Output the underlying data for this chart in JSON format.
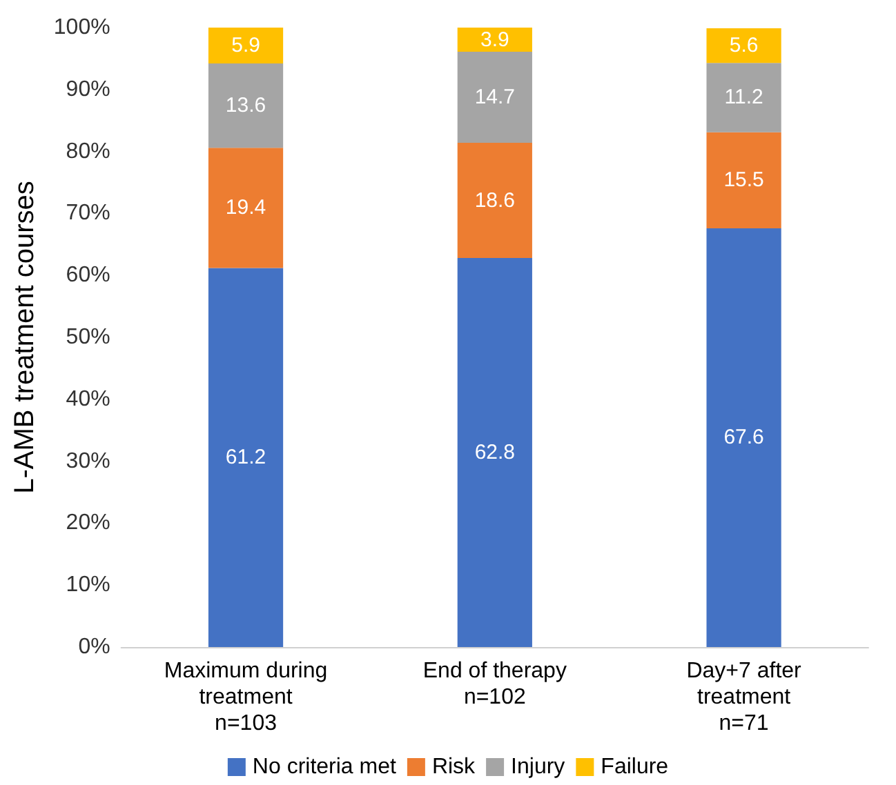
{
  "chart_data": {
    "type": "bar",
    "stacked": true,
    "ylabel": "L-AMB treatment courses",
    "categories": [
      "Maximum during\ntreatment\nn=103",
      "End of therapy\nn=102",
      "Day+7 after\ntreatment\nn=71"
    ],
    "series": [
      {
        "name": "No criteria met",
        "color": "#4472c4",
        "values": [
          61.2,
          62.8,
          67.6
        ]
      },
      {
        "name": "Risk",
        "color": "#ed7d31",
        "values": [
          19.4,
          18.6,
          15.5
        ]
      },
      {
        "name": "Injury",
        "color": "#a5a5a5",
        "values": [
          13.6,
          14.7,
          11.2
        ]
      },
      {
        "name": "Failure",
        "color": "#ffc000",
        "values": [
          5.9,
          3.9,
          5.6
        ]
      }
    ],
    "ylim": [
      0,
      100
    ],
    "yticks": [
      {
        "value": 0,
        "label": "0%"
      },
      {
        "value": 10,
        "label": "10%"
      },
      {
        "value": 20,
        "label": "20%"
      },
      {
        "value": 30,
        "label": "30%"
      },
      {
        "value": 40,
        "label": "40%"
      },
      {
        "value": 50,
        "label": "50%"
      },
      {
        "value": 60,
        "label": "60%"
      },
      {
        "value": 70,
        "label": "70%"
      },
      {
        "value": 80,
        "label": "80%"
      },
      {
        "value": 90,
        "label": "90%"
      },
      {
        "value": 100,
        "label": "100%"
      }
    ],
    "data_labels": true,
    "legend": "bottom",
    "grid": false
  }
}
